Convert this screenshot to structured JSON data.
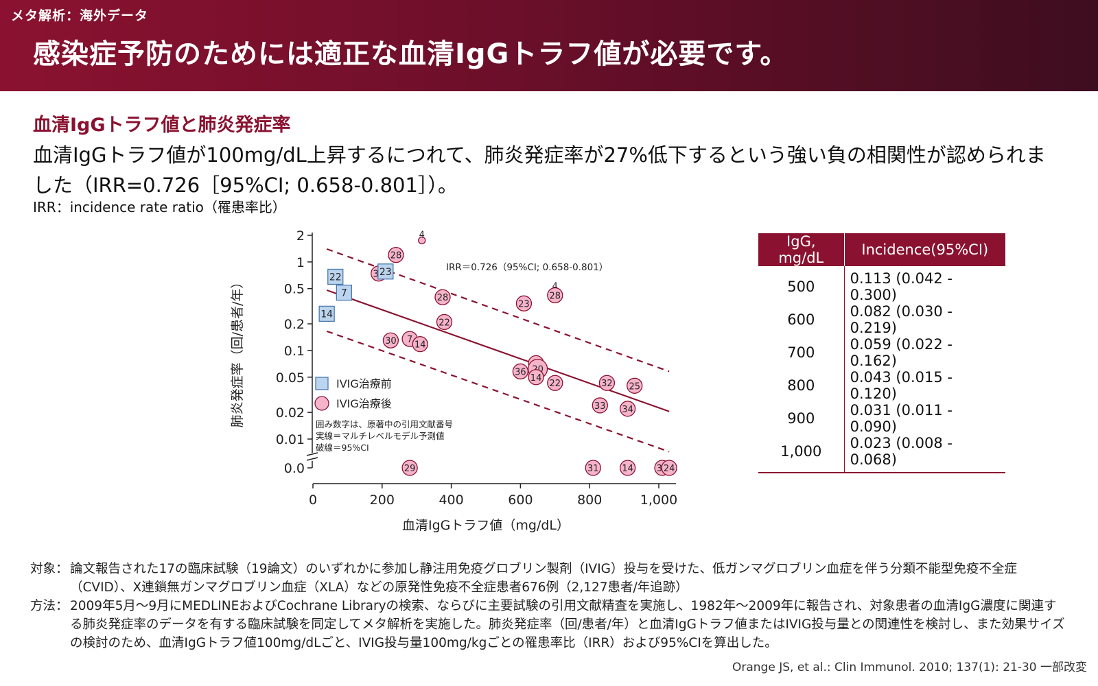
{
  "header": {
    "kicker": "メタ解析：海外データ",
    "title": "感染症予防のためには適正な血清IgGトラフ値が必要です。"
  },
  "section": {
    "heading": "血清IgGトラフ値と肺炎発症率",
    "lead": "血清IgGトラフ値が100mg/dL上昇するにつれて、肺炎発症率が27%低下するという強い負の相関性が認められました（IRR=0.726［95%CI; 0.658-0.801］）。",
    "irr_note": "IRR：incidence rate ratio（罹患率比）"
  },
  "chart_data": {
    "type": "scatter",
    "xlabel": "血清IgGトラフ値（mg/dL）",
    "ylabel": "肺炎発症率（回/患者/年）",
    "xlim": [
      0,
      1050
    ],
    "y_scale": "log",
    "x_ticks": [
      0,
      200,
      400,
      600,
      800,
      1000
    ],
    "x_tick_labels": [
      "0",
      "200",
      "400",
      "600",
      "800",
      "1,000"
    ],
    "y_ticks": [
      2,
      1,
      0.5,
      0.2,
      0.1,
      0.05,
      0.02,
      0.01
    ],
    "y_tick_labels": [
      "2",
      "1",
      "0.5",
      "0.2",
      "0.1",
      "0.05",
      "0.02",
      "0.01"
    ],
    "zero_label": "0.0",
    "annotation": "IRR＝0.726（95%CI; 0.658-0.801）",
    "legend": {
      "position": "lower-left",
      "entries": [
        {
          "name": "IVIG治療前",
          "marker": "square",
          "color": "#bcd5ee",
          "stroke": "#4a79b0"
        },
        {
          "name": "IVIG治療後",
          "marker": "circle",
          "color": "#f6b4cb",
          "stroke": "#8a1230"
        }
      ]
    },
    "notes": [
      "囲み数字は、原著中の引用文献番号",
      "実線＝マルチレベルモデル予測値",
      "破線＝95%CI"
    ],
    "fit_line": {
      "x": [
        40,
        1030
      ],
      "y": [
        0.48,
        0.0205
      ]
    },
    "ci_upper": {
      "x": [
        40,
        1030
      ],
      "y": [
        1.4,
        0.058
      ]
    },
    "ci_lower": {
      "x": [
        40,
        1030
      ],
      "y": [
        0.165,
        0.0072
      ]
    },
    "series": [
      {
        "name": "IVIG治療前",
        "points": [
          {
            "label": "22",
            "x": 65,
            "y": 0.68
          },
          {
            "label": "7",
            "x": 90,
            "y": 0.45
          },
          {
            "label": "14",
            "x": 40,
            "y": 0.26
          },
          {
            "label": "23",
            "x": 210,
            "y": 0.78
          }
        ]
      },
      {
        "name": "IVIG治療後",
        "points": [
          {
            "label": "4",
            "x": 315,
            "y": 1.75
          },
          {
            "label": "28",
            "x": 240,
            "y": 1.2
          },
          {
            "label": "30",
            "x": 190,
            "y": 0.74
          },
          {
            "label": "28",
            "x": 375,
            "y": 0.4
          },
          {
            "label": "22",
            "x": 380,
            "y": 0.21
          },
          {
            "label": "7",
            "x": 280,
            "y": 0.135
          },
          {
            "label": "14",
            "x": 310,
            "y": 0.118
          },
          {
            "label": "30",
            "x": 225,
            "y": 0.13
          },
          {
            "label": "23",
            "x": 610,
            "y": 0.34
          },
          {
            "label": "4",
            "x": 700,
            "y": 0.46
          },
          {
            "label": "28",
            "x": 700,
            "y": 0.42
          },
          {
            "label": "7",
            "x": 645,
            "y": 0.072
          },
          {
            "label": "20",
            "x": 650,
            "y": 0.062
          },
          {
            "label": "36",
            "x": 600,
            "y": 0.058
          },
          {
            "label": "14",
            "x": 645,
            "y": 0.05
          },
          {
            "label": "22",
            "x": 700,
            "y": 0.043
          },
          {
            "label": "32",
            "x": 850,
            "y": 0.043
          },
          {
            "label": "25",
            "x": 930,
            "y": 0.04
          },
          {
            "label": "33",
            "x": 830,
            "y": 0.024
          },
          {
            "label": "34",
            "x": 910,
            "y": 0.022
          },
          {
            "label": "29",
            "x": 280,
            "y": 0
          },
          {
            "label": "31",
            "x": 810,
            "y": 0
          },
          {
            "label": "14",
            "x": 910,
            "y": 0
          },
          {
            "label": "35",
            "x": 1010,
            "y": 0
          },
          {
            "label": "24",
            "x": 1030,
            "y": 0
          }
        ]
      }
    ]
  },
  "table": {
    "headers": [
      "IgG, mg/dL",
      "Incidence(95%CI)"
    ],
    "rows": [
      [
        "500",
        "0.113 (0.042 - 0.300)"
      ],
      [
        "600",
        "0.082 (0.030 - 0.219)"
      ],
      [
        "700",
        "0.059 (0.022 - 0.162)"
      ],
      [
        "800",
        "0.043 (0.015 - 0.120)"
      ],
      [
        "900",
        "0.031 (0.011 - 0.090)"
      ],
      [
        "1,000",
        "0.023 (0.008 - 0.068)"
      ]
    ]
  },
  "footer": {
    "subject_label": "対象：",
    "subject_text": "論文報告された17の臨床試験（19論文）のいずれかに参加し静注用免疫グロブリン製剤（IVIG）投与を受けた、低ガンマグロブリン血症を伴う分類不能型免疫不全症（CVID）、X連鎖無ガンマグロブリン血症（XLA）などの原発性免疫不全症患者676例（2,127患者/年追跡）",
    "method_label": "方法：",
    "method_text": "2009年5月～9月にMEDLINEおよびCochrane Libraryの検索、ならびに主要試験の引用文献精査を実施し、1982年～2009年に報告され、対象患者の血清IgG濃度に関連する肺炎発症率のデータを有する臨床試験を同定してメタ解析を実施した。肺炎発症率（回/患者/年）と血清IgGトラフ値またはIVIG投与量との関連性を検討し、また効果サイズの検討のため、血清IgGトラフ値100mg/dLごと、IVIG投与量100mg/kgごとの罹患率比（IRR）および95%CIを算出した。",
    "citation": "Orange JS, et al.: Clin Immunol. 2010; 137(1): 21-30 一部改変"
  },
  "colors": {
    "brand": "#8a1230",
    "pre_fill": "#bcd5ee",
    "post_fill": "#f6b4cb"
  }
}
